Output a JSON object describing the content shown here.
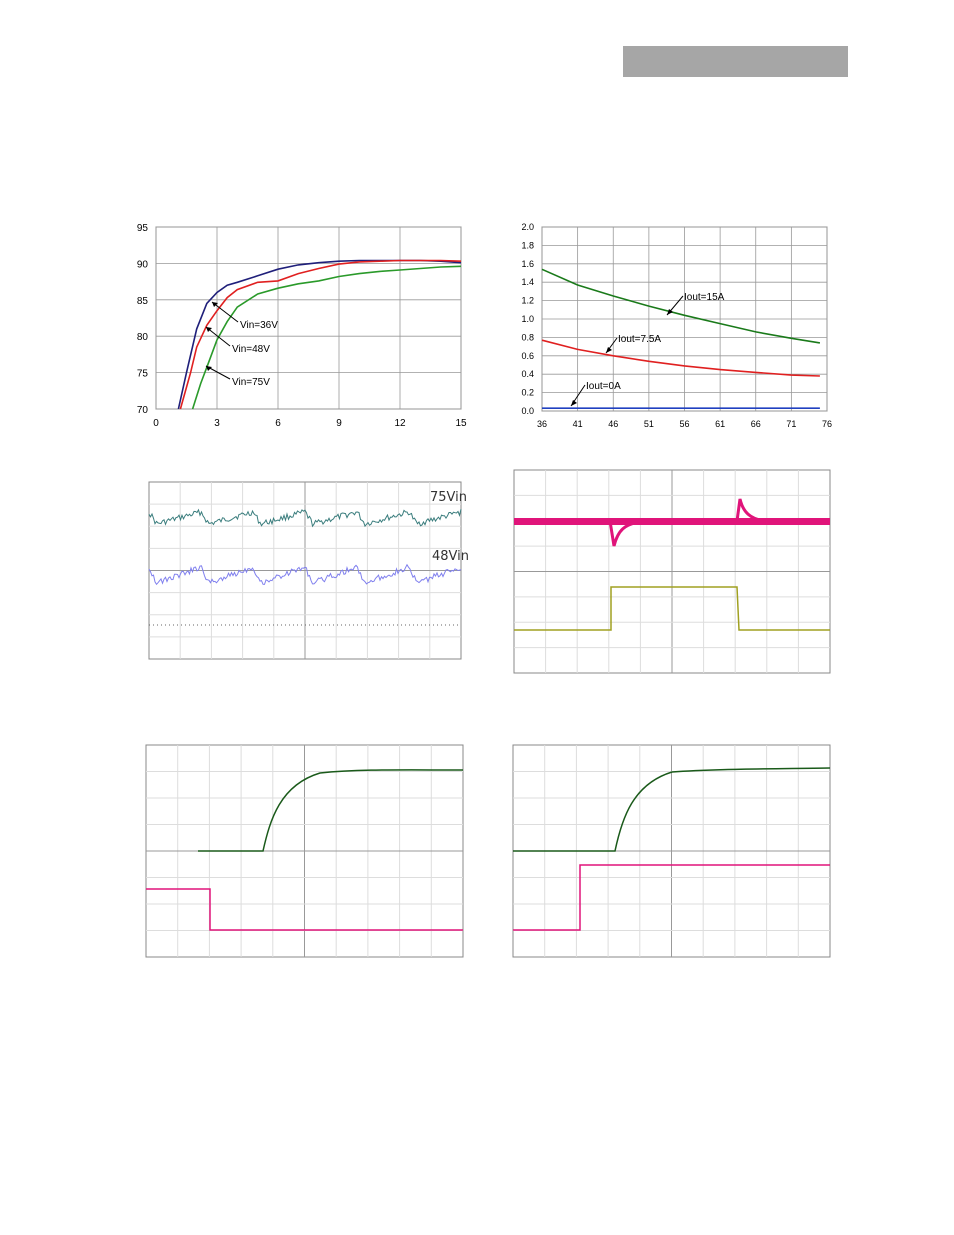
{
  "header": {
    "bar_color": "#a6a6a6"
  },
  "chart_data": [
    {
      "id": "efficiency",
      "type": "line",
      "xlim": [
        0,
        15
      ],
      "ylim": [
        70,
        95
      ],
      "x_ticks": [
        "0",
        "3",
        "6",
        "9",
        "12",
        "15"
      ],
      "y_ticks": [
        "95",
        "90",
        "85",
        "80",
        "75",
        "70"
      ],
      "grid": true,
      "series": [
        {
          "name": "Vin=36V",
          "color": "#1f1f7a",
          "x": [
            1.1,
            1.5,
            2.0,
            2.5,
            3.0,
            3.5,
            4.0,
            5.0,
            6.0,
            7.0,
            8.0,
            9.0,
            10.0,
            11.0,
            12.0,
            13.0,
            14.0,
            15.0
          ],
          "y": [
            70,
            75,
            81,
            84.5,
            86,
            87,
            87.4,
            88.3,
            89.2,
            89.8,
            90.1,
            90.3,
            90.4,
            90.4,
            90.4,
            90.4,
            90.3,
            90.1
          ]
        },
        {
          "name": "Vin=48V",
          "color": "#e02020",
          "x": [
            1.2,
            1.7,
            2.0,
            2.5,
            3.0,
            3.5,
            4.0,
            5.0,
            6.0,
            7.0,
            8.0,
            9.0,
            10.0,
            11.0,
            12.0,
            13.0,
            14.0,
            15.0
          ],
          "y": [
            70,
            75,
            78.5,
            81.5,
            83.5,
            85.3,
            86.4,
            87.4,
            87.6,
            88.6,
            89.3,
            89.9,
            90.2,
            90.3,
            90.4,
            90.4,
            90.4,
            90.3
          ]
        },
        {
          "name": "Vin=75V",
          "color": "#2a9a2a",
          "x": [
            1.8,
            2.2,
            2.6,
            3.0,
            3.5,
            4.0,
            5.0,
            6.0,
            7.0,
            8.0,
            9.0,
            10.0,
            11.0,
            12.0,
            13.0,
            14.0,
            15.0
          ],
          "y": [
            70,
            73.5,
            76.5,
            79.5,
            82,
            84,
            85.8,
            86.6,
            87.2,
            87.6,
            88.2,
            88.6,
            88.9,
            89.1,
            89.3,
            89.5,
            89.6
          ]
        }
      ],
      "annotations": [
        "Vin=36V",
        "Vin=48V",
        "Vin=75V"
      ]
    },
    {
      "id": "power-dissipation",
      "type": "line",
      "xlim": [
        36,
        76
      ],
      "ylim": [
        0,
        2.0
      ],
      "x_ticks": [
        "36",
        "41",
        "46",
        "51",
        "56",
        "61",
        "66",
        "71",
        "76"
      ],
      "y_ticks": [
        "2.0",
        "1.8",
        "1.6",
        "1.4",
        "1.2",
        "1.0",
        "0.8",
        "0.6",
        "0.4",
        "0.2",
        "0.0"
      ],
      "grid": true,
      "series": [
        {
          "name": "Iout=15A",
          "color": "#1a7a1a",
          "x": [
            36,
            41,
            46,
            51,
            56,
            61,
            66,
            71,
            75
          ],
          "y": [
            1.54,
            1.37,
            1.25,
            1.14,
            1.04,
            0.95,
            0.86,
            0.79,
            0.74
          ]
        },
        {
          "name": "Iout=7.5A",
          "color": "#e02020",
          "x": [
            36,
            41,
            46,
            51,
            56,
            61,
            66,
            71,
            75
          ],
          "y": [
            0.77,
            0.67,
            0.6,
            0.54,
            0.49,
            0.45,
            0.42,
            0.39,
            0.38
          ]
        },
        {
          "name": "Iout=0A",
          "color": "#2040c0",
          "x": [
            36,
            41,
            46,
            51,
            56,
            61,
            66,
            71,
            75
          ],
          "y": [
            0.03,
            0.03,
            0.03,
            0.03,
            0.03,
            0.03,
            0.03,
            0.03,
            0.03
          ]
        }
      ],
      "annotations": [
        "Iout=15A",
        "Iout=7.5A",
        "Iout=0A"
      ]
    }
  ],
  "scope": {
    "ripple": {
      "label_top": "75Vin",
      "label_bottom": "48Vin",
      "color_top": "#3a7d7d",
      "color_bottom": "#8080ee"
    },
    "transient": {
      "color_top": "#e0147a",
      "color_bottom": "#a0a020"
    },
    "startup_left": {
      "color_top": "#1a5a1a",
      "color_bottom": "#e0147a"
    },
    "startup_right": {
      "color_top": "#1a5a1a",
      "color_bottom": "#e0147a"
    }
  }
}
